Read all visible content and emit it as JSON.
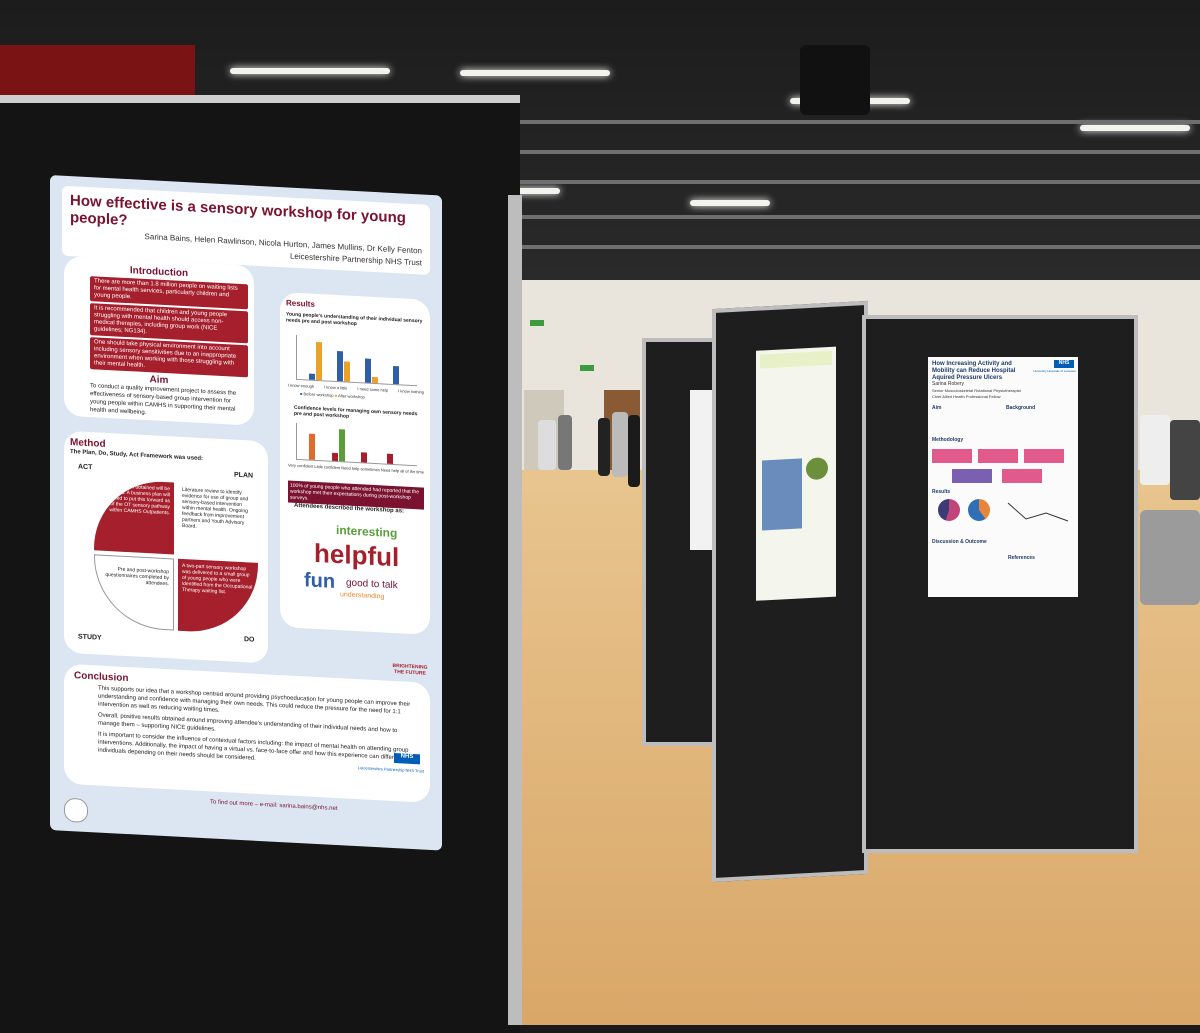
{
  "poster_main": {
    "title": "How effective is a sensory workshop for young people?",
    "authors": "Sarina Bains, Helen Rawlinson, Nicola Hurton, James Mullins, Dr Kelly Fenton",
    "org": "Leicestershire Partnership NHS Trust",
    "intro_heading": "Introduction",
    "intro_items": [
      "There are more than 1.8 million people on waiting lists for mental health services, particularly children and young people.",
      "It is recommended that children and young people struggling with mental health should access non-medical therapies, including group work (NICE guidelines; NG134).",
      "One should take physical environment into account including sensory sensitivities due to an inappropriate environment when working with those struggling with their mental health."
    ],
    "aim_heading": "Aim",
    "aim_text": "To conduct a quality improvement project to assess the effectiveness of sensory-based group intervention for young people within CAMHS in supporting their mental health and wellbeing.",
    "method_heading": "Method",
    "method_sub": "The Plan, Do, Study, Act Framework was used:",
    "pdsa": {
      "act": "ACT",
      "plan": "PLAN",
      "study": "STUDY",
      "do": "DO",
      "act_text": "Feedback obtained will be considered. A business plan will be created to put this forward as part of the OT sensory pathway within CAMHS Outpatients.",
      "plan_text": "Literature review to identify evidence for use of group and sensory-based intervention within mental health. Ongoing feedback from improvement partners and Youth Advisory Board.",
      "study_text": "Pre and post-workshop questionnaires completed by attendees.",
      "do_text": "A two-part sensory workshop was delivered to a small group of young people who were identified from the Occupational Therapy waiting list."
    },
    "results_heading": "Results",
    "chart1_title": "Young people's understanding of their individual sensory needs pre and post workshop",
    "chart1_categories": [
      "I know enough",
      "I know a little",
      "I need some help",
      "I know nothing"
    ],
    "chart2_title": "Confidence levels for managing own sensory needs pre and post workshop",
    "chart2_categories": [
      "Very confident",
      "Little confident",
      "Need help sometimes",
      "Need help all of the time"
    ],
    "legend_before": "Before workshop",
    "legend_after": "After workshop",
    "result_statement": "100% of young people who attended had reported that the workshop met their expectations during post-workshop surveys.",
    "attendees_line": "Attendees described the workshop as:",
    "words": [
      "interesting",
      "helpful",
      "fun",
      "good to talk",
      "understanding"
    ],
    "conclusion_heading": "Conclusion",
    "conclusion_items": [
      "This supports our idea that a workshop centred around providing psychoeducation for young people can improve their understanding and confidence with managing their own needs. This could reduce the pressure for the need for 1:1 intervention as well as reducing waiting times.",
      "Overall, positive results obtained around improving attendee's understanding of their individual needs and how to manage them – supporting NICE guidelines.",
      "It is important to consider the influence of contextual factors including: the impact of mental health on attending group interventions. Additionally, the impact of having a virtual vs. face-to-face offer and how this experience can differ for individuals depending on their needs should be considered."
    ],
    "logo_text": "BRIGHTENING THE FUTURE",
    "nhs_badge": "NHS",
    "nhs_trust": "Leicestershire Partnership NHS Trust",
    "contact": "To find out more – e-mail: sarina.bains@nhs.net"
  },
  "poster_right": {
    "title": "How Increasing Activity and Mobility can Reduce Hospital Aquired Pressure Ulcers",
    "author": "Sarina Robery",
    "role1": "Senior Musculoskeletal Rotational Physiotherapist",
    "role2": "Chief Allied Health Professional Fellow",
    "nhs_badge": "NHS",
    "hospital": "University Hospitals of Leicester",
    "sections": [
      "Aim",
      "Background",
      "Methodology",
      "Results",
      "Discussion & Outcome",
      "References"
    ]
  },
  "colors": {
    "maroon": "#7a1230",
    "red": "#a51f2c",
    "blue": "#2e5fa8",
    "orange": "#e98b2a",
    "green": "#5a9e3a",
    "black_board": "#141414"
  }
}
